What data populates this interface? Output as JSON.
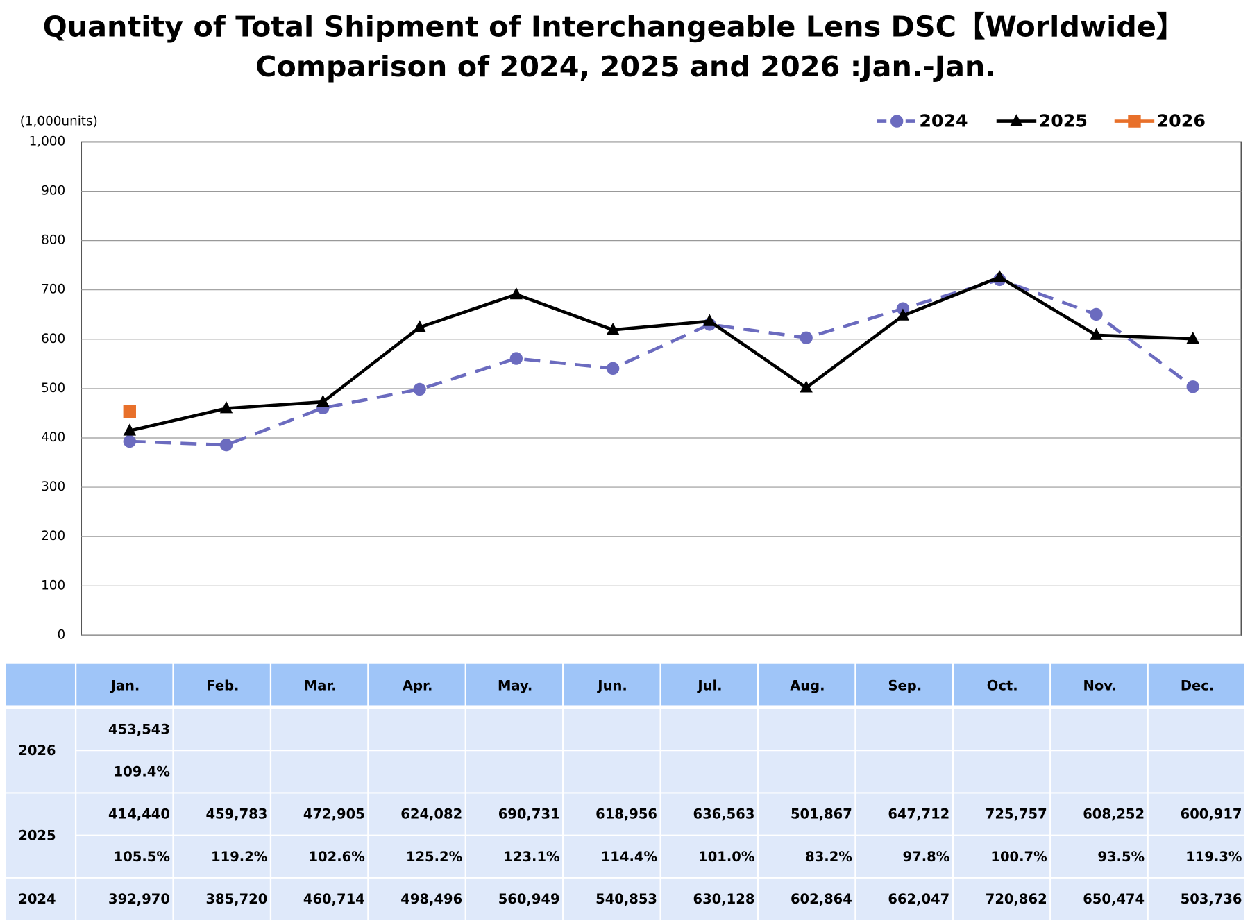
{
  "chart_data": {
    "type": "line",
    "title": "Quantity of Total Shipment of Interchangeable Lens DSC【Worldwide】",
    "subtitle": "Comparison of 2024, 2025 and 2026 :Jan.-Jan.",
    "y_label": "(1,000units)",
    "categories": [
      "Jan.",
      "Feb.",
      "Mar.",
      "Apr.",
      "May.",
      "Jun.",
      "Jul.",
      "Aug.",
      "Sep.",
      "Oct.",
      "Nov.",
      "Dec."
    ],
    "series": [
      {
        "name": "2024",
        "color": "#6b6bbf",
        "marker": "circle",
        "dashed": true,
        "values": [
          392.97,
          385.72,
          460.714,
          498.496,
          560.949,
          540.853,
          630.128,
          602.864,
          662.047,
          720.862,
          650.474,
          503.736
        ]
      },
      {
        "name": "2025",
        "color": "#000000",
        "marker": "triangle",
        "dashed": false,
        "values": [
          414.44,
          459.783,
          472.905,
          624.082,
          690.731,
          618.956,
          636.563,
          501.867,
          647.712,
          725.757,
          608.252,
          600.917
        ]
      },
      {
        "name": "2026",
        "color": "#e8702a",
        "marker": "square",
        "dashed": false,
        "values": [
          453.543,
          null,
          null,
          null,
          null,
          null,
          null,
          null,
          null,
          null,
          null,
          null
        ]
      }
    ],
    "ylim": [
      0,
      1000
    ],
    "yticks": [
      0,
      100,
      200,
      300,
      400,
      500,
      600,
      700,
      800,
      900,
      {
        "value": 1000,
        "label": "1,000"
      }
    ],
    "grid": true,
    "legend": "top-right"
  },
  "table": {
    "rows": [
      {
        "label": "2026",
        "lines": [
          [
            "453,543"
          ],
          [
            "109.4%"
          ]
        ]
      },
      {
        "label": "2025",
        "lines": [
          [
            "414,440",
            "459,783",
            "472,905",
            "624,082",
            "690,731",
            "618,956",
            "636,563",
            "501,867",
            "647,712",
            "725,757",
            "608,252",
            "600,917"
          ],
          [
            "105.5%",
            "119.2%",
            "102.6%",
            "125.2%",
            "123.1%",
            "114.4%",
            "101.0%",
            "83.2%",
            "97.8%",
            "100.7%",
            "93.5%",
            "119.3%"
          ]
        ]
      },
      {
        "label": "2024",
        "lines": [
          [
            "392,970",
            "385,720",
            "460,714",
            "498,496",
            "560,949",
            "540,853",
            "630,128",
            "602,864",
            "662,047",
            "720,862",
            "650,474",
            "503,736"
          ]
        ]
      }
    ]
  }
}
